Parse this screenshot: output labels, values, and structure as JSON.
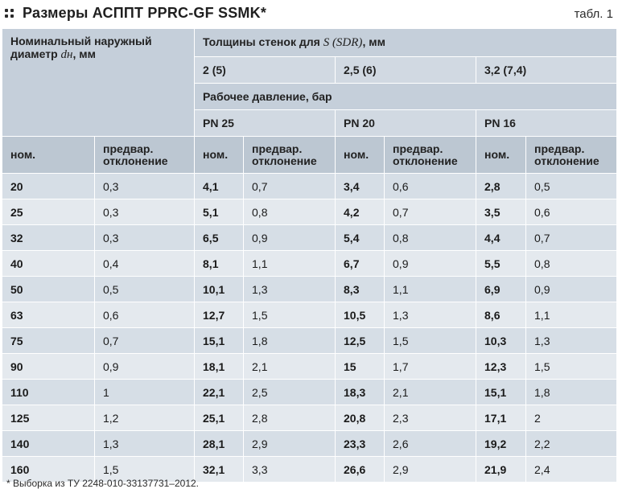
{
  "title": "Размеры АСППТ PPRC-GF SSMK*",
  "table_number": "табл. 1",
  "header": {
    "diameter_label_line1": "Номинальный наружный",
    "diameter_label_line2_prefix": "диаметр",
    "diameter_symbol": "dн",
    "diameter_label_line2_suffix": ", мм",
    "wall_label_prefix": "Толщины стенок для",
    "wall_symbol": "S (SDR)",
    "wall_label_suffix": ", мм",
    "sdr": [
      "2 (5)",
      "2,5 (6)",
      "3,2 (7,4)"
    ],
    "pressure_label": "Рабочее давление, бар",
    "pn": [
      "PN 25",
      "PN 20",
      "PN 16"
    ],
    "col_nom": "ном.",
    "col_dev_line1": "предвар.",
    "col_dev_line2": "отклонение"
  },
  "rows": [
    [
      "20",
      "0,3",
      "4,1",
      "0,7",
      "3,4",
      "0,6",
      "2,8",
      "0,5"
    ],
    [
      "25",
      "0,3",
      "5,1",
      "0,8",
      "4,2",
      "0,7",
      "3,5",
      "0,6"
    ],
    [
      "32",
      "0,3",
      "6,5",
      "0,9",
      "5,4",
      "0,8",
      "4,4",
      "0,7"
    ],
    [
      "40",
      "0,4",
      "8,1",
      "1,1",
      "6,7",
      "0,9",
      "5,5",
      "0,8"
    ],
    [
      "50",
      "0,5",
      "10,1",
      "1,3",
      "8,3",
      "1,1",
      "6,9",
      "0,9"
    ],
    [
      "63",
      "0,6",
      "12,7",
      "1,5",
      "10,5",
      "1,3",
      "8,6",
      "1,1"
    ],
    [
      "75",
      "0,7",
      "15,1",
      "1,8",
      "12,5",
      "1,5",
      "10,3",
      "1,3"
    ],
    [
      "90",
      "0,9",
      "18,1",
      "2,1",
      "15",
      "1,7",
      "12,3",
      "1,5"
    ],
    [
      "110",
      "1",
      "22,1",
      "2,5",
      "18,3",
      "2,1",
      "15,1",
      "1,8"
    ],
    [
      "125",
      "1,2",
      "25,1",
      "2,8",
      "20,8",
      "2,3",
      "17,1",
      "2"
    ],
    [
      "140",
      "1,3",
      "28,1",
      "2,9",
      "23,3",
      "2,6",
      "19,2",
      "2,2"
    ],
    [
      "160",
      "1,5",
      "32,1",
      "3,3",
      "26,6",
      "2,9",
      "21,9",
      "2,4"
    ]
  ],
  "footnote": "* Выборка из ТУ 2248-010-33137731–2012."
}
